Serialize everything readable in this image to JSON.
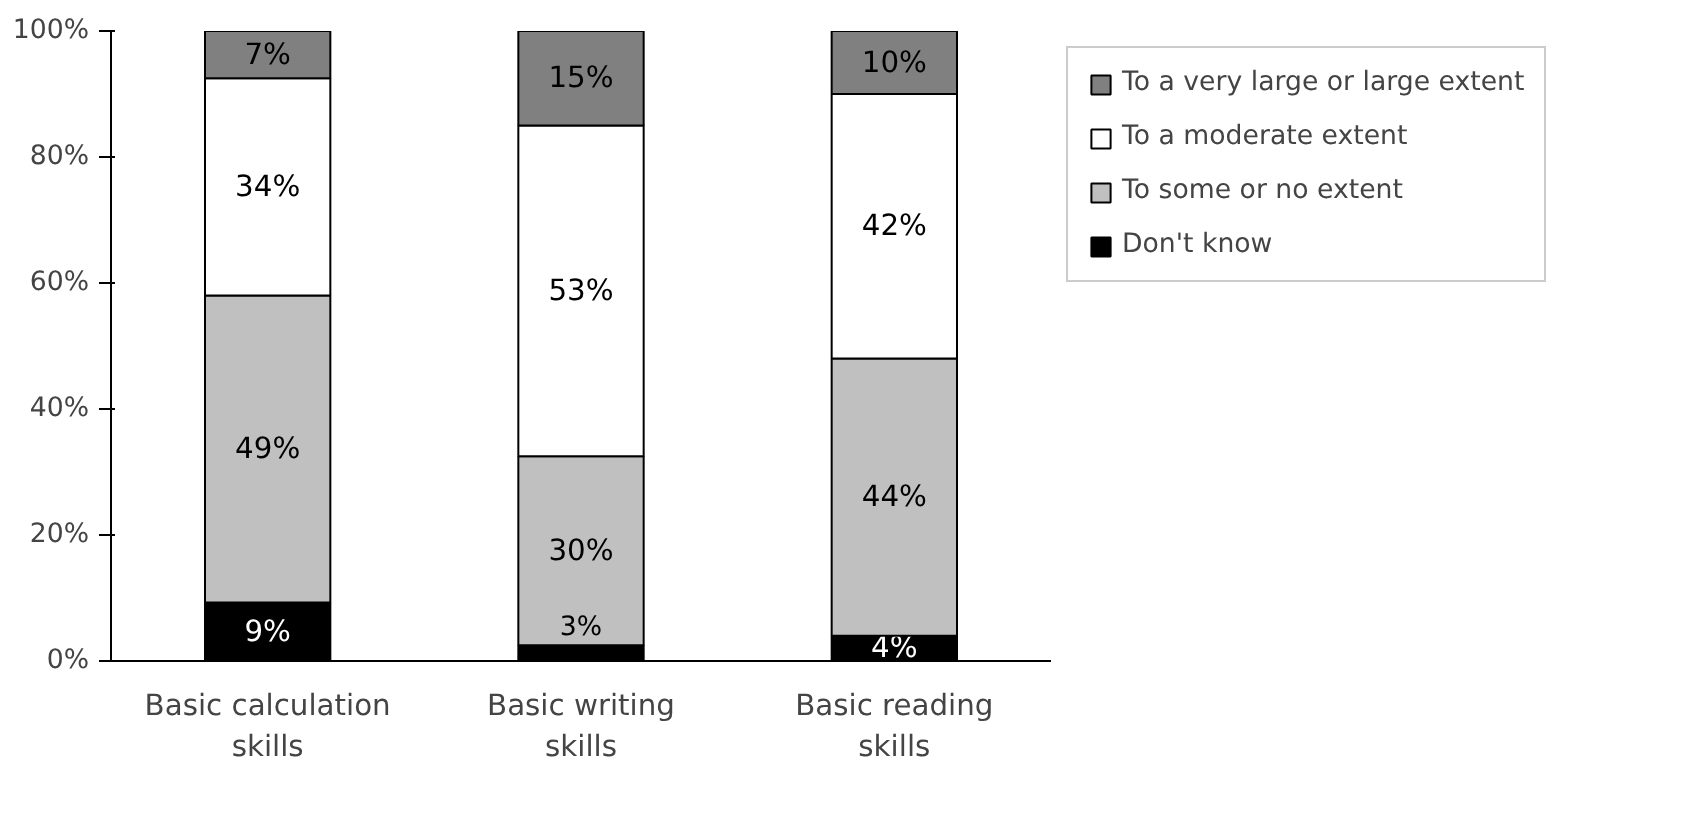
{
  "chart_data": {
    "type": "bar",
    "stacked": true,
    "categories": [
      "Basic calculation skills",
      "Basic writing skills",
      "Basic reading skills"
    ],
    "series": [
      {
        "name": "Don't know",
        "color": "#000000",
        "values": [
          9.3,
          2.5,
          4
        ],
        "value_labels": [
          "9%",
          "3%",
          "4%"
        ]
      },
      {
        "name": "To some or no extent",
        "color": "#c0c0c0",
        "values": [
          48.7,
          30,
          44
        ],
        "value_labels": [
          "49%",
          "30%",
          "44%"
        ]
      },
      {
        "name": "To a moderate extent",
        "color": "#ffffff",
        "values": [
          34.5,
          52.5,
          42
        ],
        "value_labels": [
          "34%",
          "53%",
          "42%"
        ]
      },
      {
        "name": "To a very large or large extent",
        "color": "#808080",
        "values": [
          7.5,
          15,
          10
        ],
        "value_labels": [
          "7%",
          "15%",
          "10%"
        ]
      }
    ],
    "ylim": [
      0,
      100
    ],
    "yticks": [
      {
        "value": 0,
        "label": "0%"
      },
      {
        "value": 20,
        "label": "20%"
      },
      {
        "value": 40,
        "label": "40%"
      },
      {
        "value": 60,
        "label": "60%"
      },
      {
        "value": 80,
        "label": "80%"
      },
      {
        "value": 100,
        "label": "100%"
      }
    ],
    "grid": false,
    "legend": "right"
  }
}
